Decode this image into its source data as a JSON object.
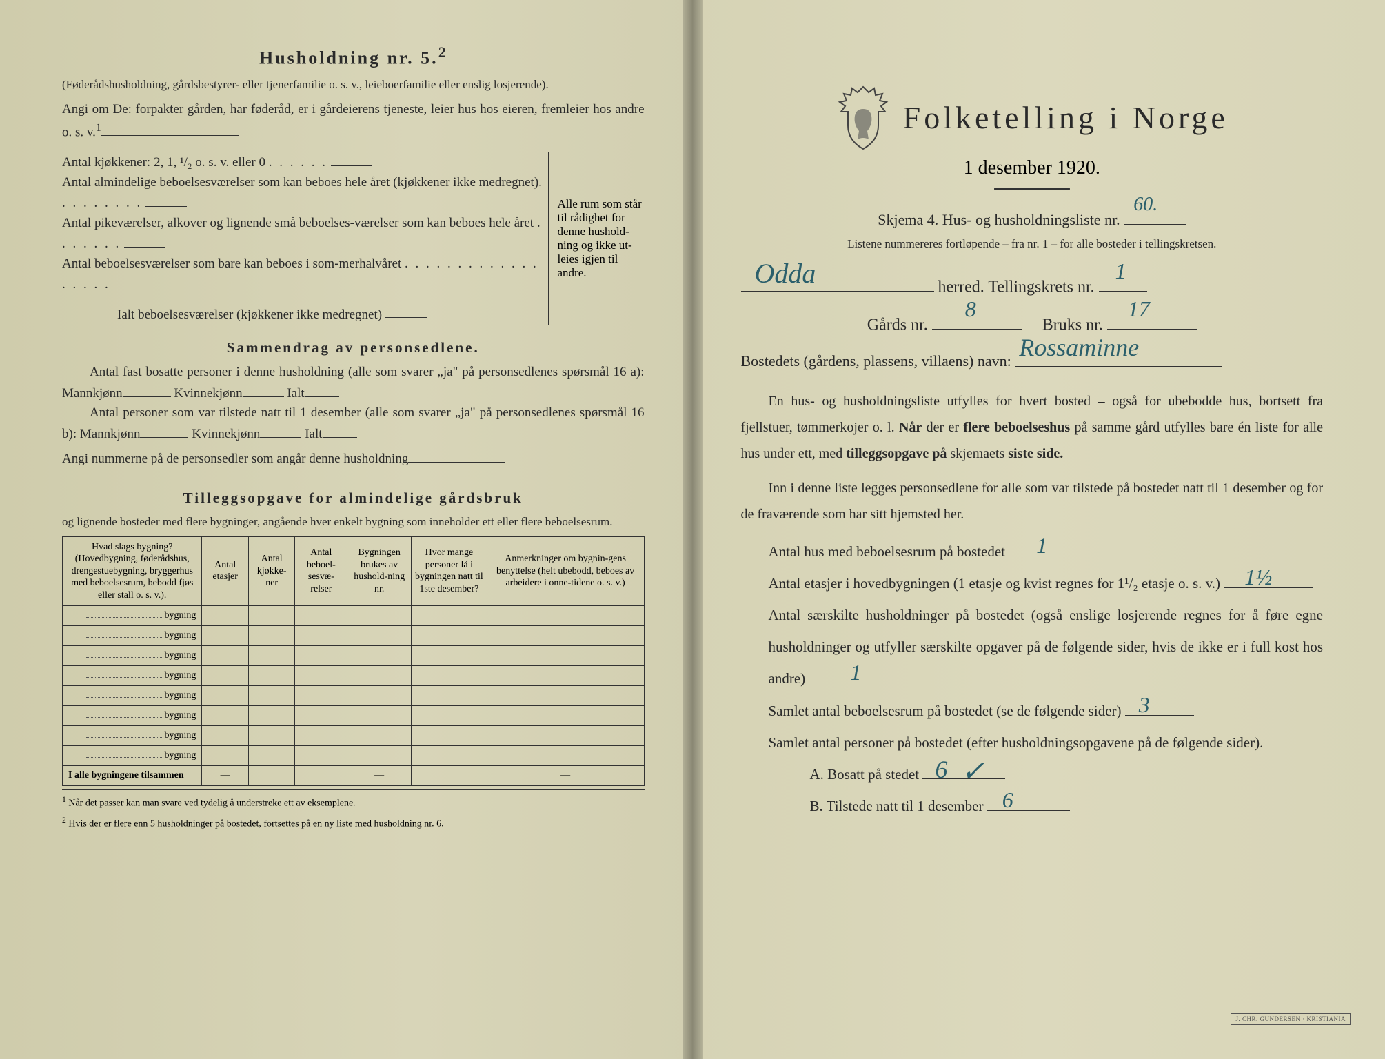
{
  "colors": {
    "paper": "#d8d5b8",
    "ink": "#2a2a2a",
    "handwriting": "#2b5f6b",
    "rule": "#333333"
  },
  "left": {
    "title": "Husholdning nr. 5.",
    "title_sup": "2",
    "subtitle": "(Føderådshusholdning, gårdsbestyrer- eller tjenerfamilie o. s. v., leieboerfamilie eller enslig losjerende).",
    "angi": "Angi om De:  forpakter gården, har føderåd, er i gårdeierens tjeneste, leier hus hos eieren, fremleier hos andre o. s. v.",
    "angi_sup": "1",
    "kitchens": "Antal kjøkkener: 2, 1, ¹/₂ o. s. v. eller 0",
    "rooms1": "Antal almindelige beboelsesværelser som kan beboes hele året (kjøkkener ikke medregnet)",
    "rooms2": "Antal pikeværelser, alkover og lignende små beboelses-værelser som kan beboes hele året",
    "rooms3": "Antal beboelsesværelser som bare kan beboes i som-merhalvåret",
    "rooms_total": "Ialt beboelsesværelser  (kjøkkener ikke medregnet)",
    "brace_text": "Alle rum som står til rådighet for denne hushold-ning og ikke ut-leies igjen til andre.",
    "section2_title": "Sammendrag av personsedlene.",
    "s2_l1a": "Antal fast bosatte personer i denne husholdning (alle som svarer „ja\" på personsedlenes spørsmål 16 a): Mannkjønn",
    "s2_l1b": "Kvinnekjønn",
    "s2_l1c": "Ialt",
    "s2_l2a": "Antal personer som var tilstede natt til 1 desember (alle som svarer „ja\" på personsedlenes spørsmål 16 b): Mannkjønn",
    "s2_l3": "Angi nummerne på de personsedler som angår denne husholdning",
    "section3_title": "Tilleggsopgave for almindelige gårdsbruk",
    "s3_sub": "og lignende bosteder med flere bygninger, angående hver enkelt bygning som inneholder ett eller flere beboelsesrum.",
    "table": {
      "headers": [
        "Hvad slags bygning?\n(Hovedbygning, føderådshus, drengestuebygning, bryggerhus med beboelsesrum, bebodd fjøs eller stall o. s. v.).",
        "Antal etasjer",
        "Antal kjøkke-ner",
        "Antal beboel-sesvæ-relser",
        "Bygningen brukes av hushold-ning nr.",
        "Hvor mange personer lå i bygningen natt til 1ste desember?",
        "Anmerkninger om bygnin-gens benyttelse (helt ubebodd, beboes av arbeidere i onne-tidene o. s. v.)"
      ],
      "row_suffix": "bygning",
      "rows": 8,
      "footer": "I alle bygningene tilsammen"
    },
    "footnote1": "Når det passer kan man svare ved tydelig å understreke ett av eksemplene.",
    "footnote2": "Hvis der er flere enn 5 husholdninger på bostedet, fortsettes på en ny liste med husholdning nr. 6."
  },
  "right": {
    "title": "Folketelling i Norge",
    "date": "1 desember 1920.",
    "form_line": "Skjema 4.  Hus- og husholdningsliste nr.",
    "form_nr": "60.",
    "list_note": "Listene nummereres fortløpende – fra nr. 1 – for alle bosteder i tellingskretsen.",
    "herred_label": "herred.   Tellingskrets nr.",
    "herred_value": "Odda",
    "krets_value": "1",
    "gards_label": "Gårds nr.",
    "gards_value": "8",
    "bruks_label": "Bruks nr.",
    "bruks_value": "17",
    "bosted_label": "Bostedets (gårdens, plassens, villaens) navn:",
    "bosted_value": "Rossaminne",
    "para1": "En hus- og husholdningsliste utfylles for hvert bosted – også for ubebodde hus, bortsett fra fjellstuer, tømmerkojer o. l.  Når der er flere beboelseshus på samme gård utfylles bare én liste for alle hus under ett, med tilleggsopgave på skjemaets siste side.",
    "para2": "Inn i denne liste legges personsedlene for alle som var tilstede på bostedet natt til 1 desember og for de fraværende som har sitt hjemsted her.",
    "q1": "Antal hus med beboelsesrum på bostedet",
    "q1_value": "1",
    "q2": "Antal etasjer i hovedbygningen (1 etasje og kvist regnes for 1¹/₂ etasje o. s. v.)",
    "q2_value": "1½",
    "q3": "Antal særskilte husholdninger på bostedet (også enslige losjerende regnes for å føre egne husholdninger og utfyller særskilte opgaver på de følgende sider, hvis de ikke er i full kost hos andre)",
    "q3_value": "1",
    "q4": "Samlet antal beboelsesrum på bostedet (se de følgende sider)",
    "q4_value": "3",
    "q5": "Samlet antal personer på bostedet (efter husholdningsopgavene på de følgende sider).",
    "q5a_label": "A.  Bosatt på stedet",
    "q5a_value": "6",
    "q5b_label": "B.  Tilstede natt til 1 desember",
    "q5b_value": "6",
    "stamp": "J. CHR. GUNDERSEN · KRISTIANIA"
  }
}
